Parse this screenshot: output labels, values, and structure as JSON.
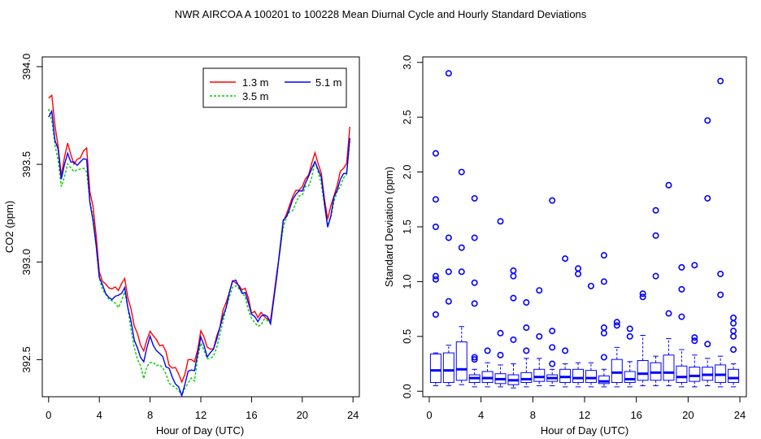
{
  "figure_title": "NWR   AIRCOA A   100201 to 100228   Mean Diurnal Cycle and Hourly Standard Deviations",
  "chart_data": [
    {
      "type": "line",
      "xlabel": "Hour of Day (UTC)",
      "ylabel": "CO2 (ppm)",
      "xlim": [
        -0.5,
        24.5
      ],
      "ylim": [
        392.31,
        394.05
      ],
      "xticks": [
        0,
        4,
        8,
        12,
        16,
        20,
        24
      ],
      "yticks": [
        392.5,
        393.0,
        393.5,
        394.0
      ],
      "ytick_labels": [
        "392.5",
        "393.0",
        "393.5",
        "394.0"
      ],
      "legend_position": "top-right",
      "series": [
        {
          "name": "1.3 m",
          "color": "#ff0000",
          "dash": "",
          "anchors": [
            [
              0,
              393.85
            ],
            [
              0.15,
              393.97
            ],
            [
              0.35,
              393.72
            ],
            [
              0.6,
              393.68
            ],
            [
              1,
              393.45
            ],
            [
              1.5,
              393.6
            ],
            [
              2,
              393.5
            ],
            [
              2.5,
              393.55
            ],
            [
              3,
              393.58
            ],
            [
              3.3,
              393.32
            ],
            [
              3.6,
              393.25
            ],
            [
              4,
              392.95
            ],
            [
              4.5,
              392.87
            ],
            [
              5,
              392.85
            ],
            [
              5.5,
              392.87
            ],
            [
              6,
              392.9
            ],
            [
              6.5,
              392.75
            ],
            [
              7,
              392.62
            ],
            [
              7.5,
              392.55
            ],
            [
              8,
              392.65
            ],
            [
              8.5,
              392.6
            ],
            [
              9,
              392.57
            ],
            [
              9.5,
              392.48
            ],
            [
              10,
              392.45
            ],
            [
              10.5,
              392.38
            ],
            [
              11,
              392.5
            ],
            [
              11.5,
              392.48
            ],
            [
              12,
              392.65
            ],
            [
              12.5,
              392.55
            ],
            [
              13,
              392.56
            ],
            [
              13.5,
              392.68
            ],
            [
              14,
              392.8
            ],
            [
              14.5,
              392.9
            ],
            [
              15,
              392.88
            ],
            [
              15.5,
              392.85
            ],
            [
              16,
              392.75
            ],
            [
              16.5,
              392.73
            ],
            [
              17,
              392.72
            ],
            [
              17.5,
              392.7
            ],
            [
              18,
              392.95
            ],
            [
              18.5,
              393.2
            ],
            [
              19,
              393.3
            ],
            [
              19.5,
              393.35
            ],
            [
              20,
              393.4
            ],
            [
              20.5,
              393.45
            ],
            [
              21,
              393.55
            ],
            [
              21.5,
              393.45
            ],
            [
              22,
              393.22
            ],
            [
              22.5,
              393.35
            ],
            [
              23,
              393.45
            ],
            [
              23.5,
              393.5
            ],
            [
              23.75,
              393.68
            ]
          ]
        },
        {
          "name": "3.5 m",
          "color": "#00cc00",
          "dash": "3,2",
          "anchors": [
            [
              0,
              393.8
            ],
            [
              0.15,
              393.9
            ],
            [
              0.35,
              393.58
            ],
            [
              0.6,
              393.62
            ],
            [
              1,
              393.37
            ],
            [
              1.5,
              393.5
            ],
            [
              2,
              393.46
            ],
            [
              2.5,
              393.48
            ],
            [
              3,
              393.45
            ],
            [
              3.3,
              393.3
            ],
            [
              3.6,
              393.18
            ],
            [
              4,
              392.9
            ],
            [
              4.5,
              392.82
            ],
            [
              5,
              392.8
            ],
            [
              5.5,
              392.78
            ],
            [
              6,
              392.85
            ],
            [
              6.5,
              392.65
            ],
            [
              7,
              392.5
            ],
            [
              7.5,
              392.42
            ],
            [
              8,
              392.5
            ],
            [
              8.5,
              392.48
            ],
            [
              9,
              392.45
            ],
            [
              9.5,
              392.38
            ],
            [
              10,
              392.36
            ],
            [
              10.5,
              392.33
            ],
            [
              11,
              392.38
            ],
            [
              11.5,
              392.4
            ],
            [
              12,
              392.58
            ],
            [
              12.5,
              392.5
            ],
            [
              13,
              392.52
            ],
            [
              13.5,
              392.63
            ],
            [
              14,
              392.75
            ],
            [
              14.5,
              392.88
            ],
            [
              15,
              392.85
            ],
            [
              15.5,
              392.82
            ],
            [
              16,
              392.7
            ],
            [
              16.5,
              392.67
            ],
            [
              17,
              392.7
            ],
            [
              17.5,
              392.68
            ],
            [
              18,
              392.92
            ],
            [
              18.5,
              393.18
            ],
            [
              19,
              393.25
            ],
            [
              19.5,
              393.3
            ],
            [
              20,
              393.35
            ],
            [
              20.5,
              393.4
            ],
            [
              21,
              393.5
            ],
            [
              21.5,
              393.4
            ],
            [
              22,
              393.17
            ],
            [
              22.5,
              393.3
            ],
            [
              23,
              393.4
            ],
            [
              23.5,
              393.45
            ],
            [
              23.75,
              393.62
            ]
          ]
        },
        {
          "name": "5.1 m",
          "color": "#0000ff",
          "dash": "",
          "anchors": [
            [
              0,
              393.75
            ],
            [
              0.15,
              393.95
            ],
            [
              0.35,
              393.6
            ],
            [
              0.6,
              393.65
            ],
            [
              1,
              393.42
            ],
            [
              1.5,
              393.55
            ],
            [
              2,
              393.5
            ],
            [
              2.5,
              393.52
            ],
            [
              3,
              393.52
            ],
            [
              3.3,
              393.28
            ],
            [
              3.6,
              393.2
            ],
            [
              4,
              392.92
            ],
            [
              4.5,
              392.85
            ],
            [
              5,
              392.82
            ],
            [
              5.5,
              392.82
            ],
            [
              6,
              392.88
            ],
            [
              6.5,
              392.68
            ],
            [
              7,
              392.55
            ],
            [
              7.5,
              392.48
            ],
            [
              8,
              392.62
            ],
            [
              8.5,
              392.55
            ],
            [
              9,
              392.5
            ],
            [
              9.5,
              392.45
            ],
            [
              10,
              392.38
            ],
            [
              10.5,
              392.33
            ],
            [
              11,
              392.45
            ],
            [
              11.5,
              392.45
            ],
            [
              12,
              392.62
            ],
            [
              12.5,
              392.52
            ],
            [
              13,
              392.55
            ],
            [
              13.5,
              392.65
            ],
            [
              14,
              392.78
            ],
            [
              14.5,
              392.9
            ],
            [
              15,
              392.88
            ],
            [
              15.5,
              392.83
            ],
            [
              16,
              392.72
            ],
            [
              16.5,
              392.7
            ],
            [
              17,
              392.72
            ],
            [
              17.5,
              392.7
            ],
            [
              18,
              392.93
            ],
            [
              18.5,
              393.2
            ],
            [
              19,
              393.27
            ],
            [
              19.5,
              393.35
            ],
            [
              20,
              393.38
            ],
            [
              20.5,
              393.43
            ],
            [
              21,
              393.52
            ],
            [
              21.5,
              393.42
            ],
            [
              22,
              393.18
            ],
            [
              22.5,
              393.32
            ],
            [
              23,
              393.42
            ],
            [
              23.5,
              393.47
            ],
            [
              23.75,
              393.62
            ]
          ]
        }
      ]
    },
    {
      "type": "box",
      "xlabel": "Hour of Day (UTC)",
      "ylabel": "Standard Deviation (ppm)",
      "xlim": [
        -0.5,
        24.5
      ],
      "ylim": [
        -0.05,
        3.05
      ],
      "xticks": [
        0,
        4,
        8,
        12,
        16,
        20,
        24
      ],
      "yticks": [
        0.0,
        0.5,
        1.0,
        1.5,
        2.0,
        2.5,
        3.0
      ],
      "ytick_labels": [
        "0.0",
        "0.5",
        "1.0",
        "1.5",
        "2.0",
        "2.5",
        "3.0"
      ],
      "color": "#0000ff",
      "boxes": [
        {
          "x": 0.5,
          "q1": 0.08,
          "med": 0.19,
          "q3": 0.34,
          "lo": 0.05,
          "hi": 0.35,
          "outliers": [
            2.17,
            1.75,
            1.5,
            1.05,
            1.02,
            0.7
          ]
        },
        {
          "x": 1.5,
          "q1": 0.08,
          "med": 0.19,
          "q3": 0.35,
          "lo": 0.05,
          "hi": 0.42,
          "outliers": [
            2.9,
            1.4,
            1.09,
            0.82
          ]
        },
        {
          "x": 2.5,
          "q1": 0.1,
          "med": 0.2,
          "q3": 0.45,
          "lo": 0.06,
          "hi": 0.59,
          "outliers": [
            2.0,
            1.31,
            1.09
          ]
        },
        {
          "x": 3.5,
          "q1": 0.08,
          "med": 0.12,
          "q3": 0.15,
          "lo": 0.04,
          "hi": 0.2,
          "outliers": [
            1.76,
            1.4,
            0.99,
            0.8,
            0.31,
            0.29
          ]
        },
        {
          "x": 4.5,
          "q1": 0.08,
          "med": 0.12,
          "q3": 0.18,
          "lo": 0.04,
          "hi": 0.26,
          "outliers": [
            0.37
          ]
        },
        {
          "x": 5.5,
          "q1": 0.07,
          "med": 0.11,
          "q3": 0.16,
          "lo": 0.04,
          "hi": 0.24,
          "outliers": [
            1.55,
            0.53,
            0.33
          ]
        },
        {
          "x": 6.5,
          "q1": 0.06,
          "med": 0.1,
          "q3": 0.15,
          "lo": 0.03,
          "hi": 0.25,
          "outliers": [
            1.1,
            1.05,
            0.85,
            0.47
          ]
        },
        {
          "x": 7.5,
          "q1": 0.08,
          "med": 0.11,
          "q3": 0.17,
          "lo": 0.04,
          "hi": 0.3,
          "outliers": [
            0.81,
            0.58,
            0.37
          ]
        },
        {
          "x": 8.5,
          "q1": 0.09,
          "med": 0.13,
          "q3": 0.2,
          "lo": 0.05,
          "hi": 0.3,
          "outliers": [
            0.92,
            0.5
          ]
        },
        {
          "x": 9.5,
          "q1": 0.09,
          "med": 0.12,
          "q3": 0.15,
          "lo": 0.05,
          "hi": 0.2,
          "outliers": [
            1.74,
            0.55,
            0.4,
            0.25
          ]
        },
        {
          "x": 10.5,
          "q1": 0.08,
          "med": 0.13,
          "q3": 0.2,
          "lo": 0.04,
          "hi": 0.25,
          "outliers": [
            1.21,
            0.37
          ]
        },
        {
          "x": 11.5,
          "q1": 0.08,
          "med": 0.12,
          "q3": 0.2,
          "lo": 0.04,
          "hi": 0.26,
          "outliers": [
            1.12,
            1.07
          ]
        },
        {
          "x": 12.5,
          "q1": 0.08,
          "med": 0.12,
          "q3": 0.19,
          "lo": 0.04,
          "hi": 0.26,
          "outliers": [
            0.96
          ]
        },
        {
          "x": 13.5,
          "q1": 0.07,
          "med": 0.09,
          "q3": 0.14,
          "lo": 0.04,
          "hi": 0.2,
          "outliers": [
            1.24,
            1.0,
            0.58,
            0.53,
            0.31
          ]
        },
        {
          "x": 14.5,
          "q1": 0.08,
          "med": 0.17,
          "q3": 0.29,
          "lo": 0.04,
          "hi": 0.4,
          "outliers": [
            0.63,
            0.6
          ]
        },
        {
          "x": 15.5,
          "q1": 0.08,
          "med": 0.11,
          "q3": 0.18,
          "lo": 0.04,
          "hi": 0.27,
          "outliers": [
            0.57,
            0.5
          ]
        },
        {
          "x": 16.5,
          "q1": 0.1,
          "med": 0.16,
          "q3": 0.28,
          "lo": 0.05,
          "hi": 0.51,
          "outliers": [
            0.89,
            0.86
          ]
        },
        {
          "x": 17.5,
          "q1": 0.1,
          "med": 0.17,
          "q3": 0.26,
          "lo": 0.05,
          "hi": 0.32,
          "outliers": [
            1.65,
            1.42,
            1.05
          ]
        },
        {
          "x": 18.5,
          "q1": 0.1,
          "med": 0.17,
          "q3": 0.33,
          "lo": 0.05,
          "hi": 0.48,
          "outliers": [
            1.88,
            0.71
          ]
        },
        {
          "x": 19.5,
          "q1": 0.08,
          "med": 0.13,
          "q3": 0.23,
          "lo": 0.04,
          "hi": 0.38,
          "outliers": [
            1.13,
            0.93,
            0.68
          ]
        },
        {
          "x": 20.5,
          "q1": 0.09,
          "med": 0.14,
          "q3": 0.22,
          "lo": 0.04,
          "hi": 0.33,
          "outliers": [
            1.15,
            0.49,
            0.46
          ]
        },
        {
          "x": 21.5,
          "q1": 0.1,
          "med": 0.15,
          "q3": 0.22,
          "lo": 0.05,
          "hi": 0.3,
          "outliers": [
            2.47,
            1.76,
            0.43
          ]
        },
        {
          "x": 22.5,
          "q1": 0.08,
          "med": 0.15,
          "q3": 0.24,
          "lo": 0.04,
          "hi": 0.32,
          "outliers": [
            2.83,
            1.07,
            0.88
          ]
        },
        {
          "x": 23.5,
          "q1": 0.08,
          "med": 0.12,
          "q3": 0.2,
          "lo": 0.04,
          "hi": 0.25,
          "outliers": [
            0.67,
            0.62,
            0.55,
            0.5,
            0.38
          ]
        }
      ]
    }
  ]
}
